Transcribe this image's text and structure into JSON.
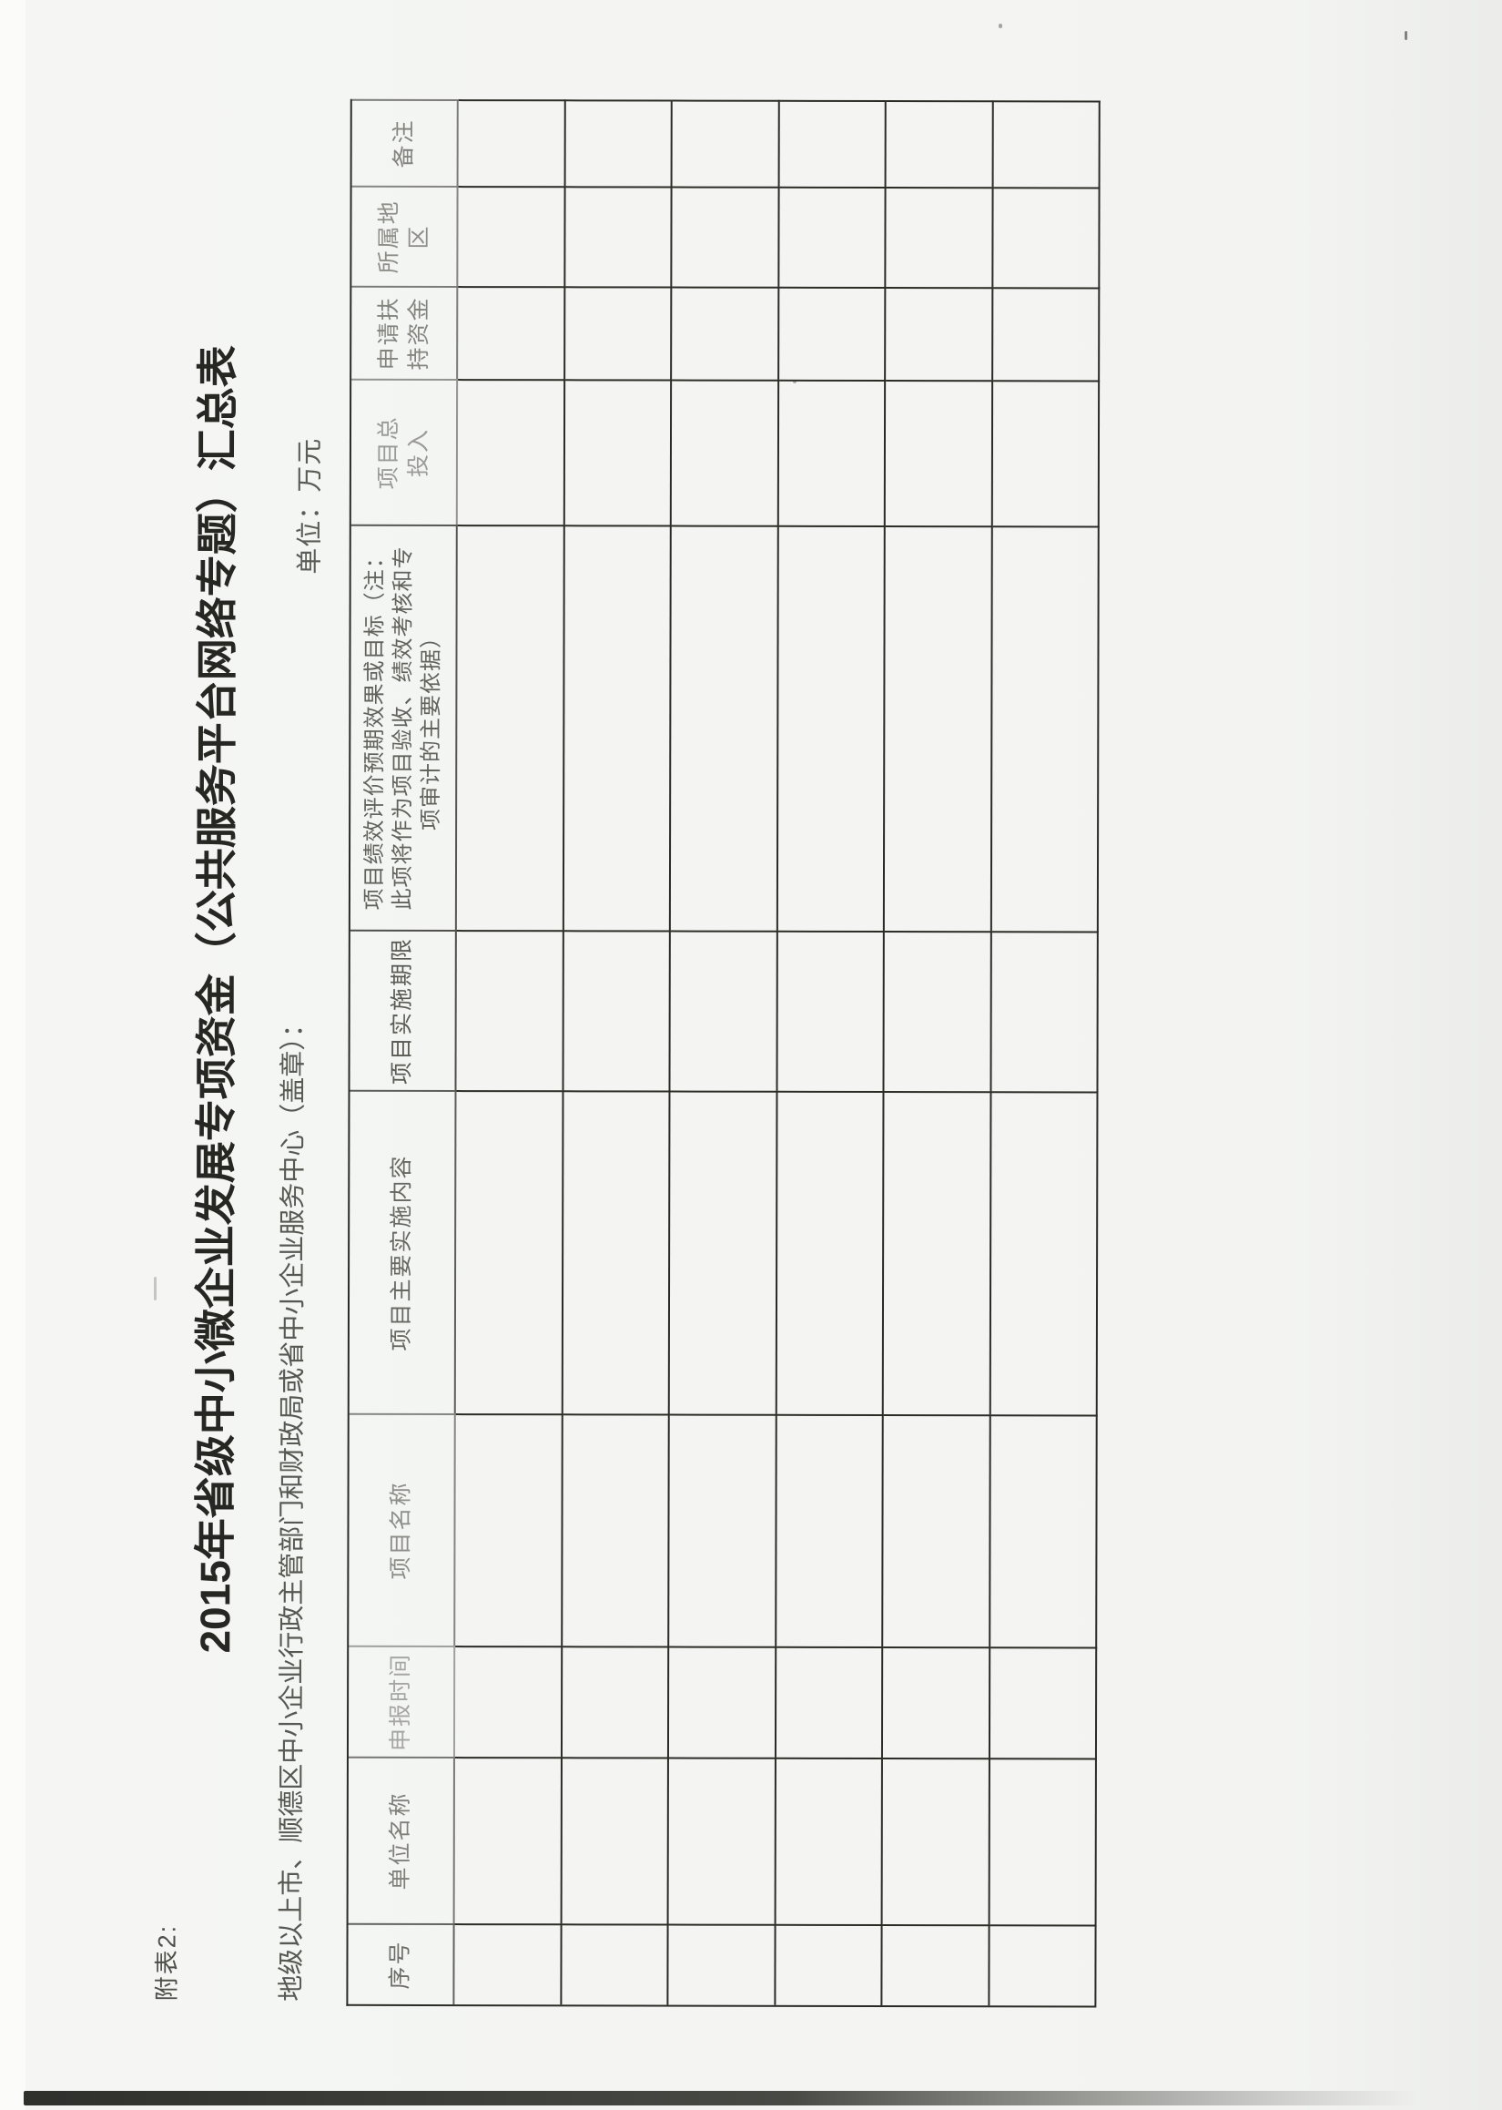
{
  "page": {
    "form_label": "附表2:",
    "title": "2015年省级中小微企业发展专项资金（公共服务平台网络专题）汇总表",
    "subtitle": "地级以上市、顺德区中小企业行政主管部门和财政局或省中小企业服务中心（盖章）：",
    "unit_note": "单位：万元",
    "colors": {
      "paper": "#f3f4f2",
      "ink": "#2b2b26"
    }
  },
  "table": {
    "columns": [
      "序号",
      "单位名称",
      "申报时间",
      "项目名称",
      "项目主要实施内容",
      "项目实施期限",
      "项目绩效评价预期效果或目标（注：\n此项将作为项目验收、绩效考核和专\n项审计的主要依据）",
      "项目总\n投入",
      "申请扶\n持资金",
      "所属地\n区",
      "备注"
    ],
    "row_count": 6
  }
}
